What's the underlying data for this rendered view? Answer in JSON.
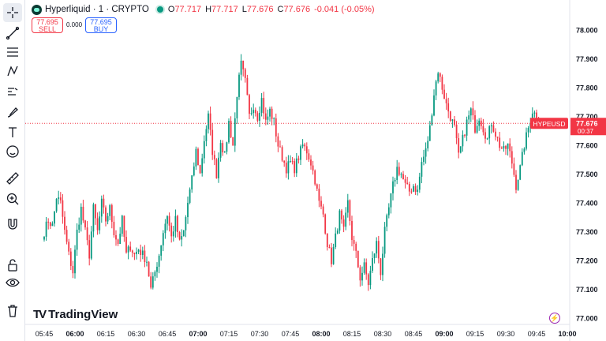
{
  "header": {
    "symbol": "Hyperliquid · 1 · CRYPTO",
    "open_label": "O",
    "open": "77.717",
    "high_label": "H",
    "high": "77.717",
    "low_label": "L",
    "low": "77.676",
    "close_label": "C",
    "close": "77.676",
    "change": "-0.041 (-0.05%)"
  },
  "trade": {
    "sell_price": "77.695",
    "sell_label": "SELL",
    "buy_price": "77.695",
    "buy_label": "BUY",
    "spread": "0.000"
  },
  "toolbar": {
    "icons": [
      "crosshair-icon",
      "trend-line-icon",
      "fib-retracement-icon",
      "pattern-icon",
      "forecast-icon",
      "brush-icon",
      "text-icon",
      "emoji-icon",
      "ruler-icon",
      "zoom-in-icon",
      "magnet-icon",
      "lock-icon",
      "eye-icon",
      "trash-icon"
    ]
  },
  "watermark": {
    "text": "TradingView"
  },
  "colors": {
    "up": "#089981",
    "down": "#f23645",
    "tag": "#f23645"
  },
  "chart_data": {
    "type": "candlestick",
    "symbol_tag": "HYPEUSD",
    "last_price": "77.676",
    "countdown": "00:37",
    "y_ticks": [
      "78.000",
      "77.900",
      "77.800",
      "77.700",
      "77.600",
      "77.500",
      "77.400",
      "77.300",
      "77.200",
      "77.100",
      "77.000"
    ],
    "ylim": [
      77.0,
      78.0
    ],
    "x_ticks": [
      {
        "t": 0,
        "label": "05:45"
      },
      {
        "t": 15,
        "label": "06:00",
        "bold": true
      },
      {
        "t": 30,
        "label": "06:15"
      },
      {
        "t": 45,
        "label": "06:30"
      },
      {
        "t": 60,
        "label": "06:45"
      },
      {
        "t": 75,
        "label": "07:00",
        "bold": true
      },
      {
        "t": 90,
        "label": "07:15"
      },
      {
        "t": 105,
        "label": "07:30"
      },
      {
        "t": 120,
        "label": "07:45"
      },
      {
        "t": 135,
        "label": "08:00",
        "bold": true
      },
      {
        "t": 150,
        "label": "08:15"
      },
      {
        "t": 165,
        "label": "08:30"
      },
      {
        "t": 180,
        "label": "08:45"
      },
      {
        "t": 195,
        "label": "09:00",
        "bold": true
      },
      {
        "t": 210,
        "label": "09:15"
      },
      {
        "t": 225,
        "label": "09:30"
      },
      {
        "t": 240,
        "label": "09:45"
      },
      {
        "t": 255,
        "label": "10:00",
        "bold": true
      }
    ],
    "close_path": [
      [
        0,
        77.3
      ],
      [
        2,
        77.34
      ],
      [
        4,
        77.32
      ],
      [
        6,
        77.42
      ],
      [
        8,
        77.4
      ],
      [
        10,
        77.3
      ],
      [
        12,
        77.22
      ],
      [
        14,
        77.16
      ],
      [
        16,
        77.3
      ],
      [
        18,
        77.38
      ],
      [
        20,
        77.3
      ],
      [
        22,
        77.22
      ],
      [
        24,
        77.38
      ],
      [
        26,
        77.3
      ],
      [
        28,
        77.4
      ],
      [
        30,
        77.34
      ],
      [
        32,
        77.38
      ],
      [
        34,
        77.3
      ],
      [
        36,
        77.26
      ],
      [
        38,
        77.34
      ],
      [
        40,
        77.22
      ],
      [
        42,
        77.25
      ],
      [
        44,
        77.22
      ],
      [
        46,
        77.24
      ],
      [
        48,
        77.22
      ],
      [
        50,
        77.2
      ],
      [
        52,
        77.1
      ],
      [
        54,
        77.16
      ],
      [
        56,
        77.22
      ],
      [
        58,
        77.3
      ],
      [
        60,
        77.36
      ],
      [
        62,
        77.28
      ],
      [
        64,
        77.34
      ],
      [
        66,
        77.26
      ],
      [
        68,
        77.3
      ],
      [
        70,
        77.4
      ],
      [
        72,
        77.48
      ],
      [
        74,
        77.58
      ],
      [
        76,
        77.5
      ],
      [
        78,
        77.62
      ],
      [
        80,
        77.7
      ],
      [
        82,
        77.58
      ],
      [
        84,
        77.5
      ],
      [
        86,
        77.62
      ],
      [
        88,
        77.56
      ],
      [
        90,
        77.68
      ],
      [
        92,
        77.6
      ],
      [
        94,
        77.78
      ],
      [
        96,
        77.88
      ],
      [
        98,
        77.82
      ],
      [
        100,
        77.7
      ],
      [
        102,
        77.74
      ],
      [
        104,
        77.7
      ],
      [
        106,
        77.76
      ],
      [
        108,
        77.68
      ],
      [
        110,
        77.72
      ],
      [
        112,
        77.68
      ],
      [
        114,
        77.6
      ],
      [
        116,
        77.56
      ],
      [
        118,
        77.52
      ],
      [
        120,
        77.54
      ],
      [
        122,
        77.52
      ],
      [
        124,
        77.56
      ],
      [
        126,
        77.6
      ],
      [
        128,
        77.58
      ],
      [
        130,
        77.54
      ],
      [
        132,
        77.48
      ],
      [
        134,
        77.4
      ],
      [
        136,
        77.36
      ],
      [
        138,
        77.26
      ],
      [
        140,
        77.2
      ],
      [
        142,
        77.28
      ],
      [
        144,
        77.36
      ],
      [
        146,
        77.3
      ],
      [
        148,
        77.4
      ],
      [
        150,
        77.28
      ],
      [
        152,
        77.22
      ],
      [
        154,
        77.14
      ],
      [
        156,
        77.18
      ],
      [
        158,
        77.12
      ],
      [
        160,
        77.2
      ],
      [
        162,
        77.26
      ],
      [
        164,
        77.16
      ],
      [
        166,
        77.3
      ],
      [
        168,
        77.38
      ],
      [
        170,
        77.46
      ],
      [
        172,
        77.52
      ],
      [
        174,
        77.5
      ],
      [
        176,
        77.46
      ],
      [
        178,
        77.44
      ],
      [
        180,
        77.46
      ],
      [
        182,
        77.44
      ],
      [
        184,
        77.54
      ],
      [
        186,
        77.58
      ],
      [
        188,
        77.66
      ],
      [
        190,
        77.78
      ],
      [
        192,
        77.86
      ],
      [
        194,
        77.8
      ],
      [
        196,
        77.74
      ],
      [
        198,
        77.7
      ],
      [
        200,
        77.66
      ],
      [
        202,
        77.56
      ],
      [
        204,
        77.62
      ],
      [
        206,
        77.68
      ],
      [
        208,
        77.72
      ],
      [
        210,
        77.66
      ],
      [
        212,
        77.7
      ],
      [
        214,
        77.66
      ],
      [
        216,
        77.62
      ],
      [
        218,
        77.68
      ],
      [
        220,
        77.64
      ],
      [
        222,
        77.6
      ],
      [
        224,
        77.58
      ],
      [
        226,
        77.6
      ],
      [
        228,
        77.54
      ],
      [
        230,
        77.46
      ],
      [
        232,
        77.52
      ],
      [
        234,
        77.6
      ],
      [
        236,
        77.66
      ],
      [
        238,
        77.72
      ],
      [
        240,
        77.7
      ],
      [
        241,
        77.676
      ]
    ]
  }
}
